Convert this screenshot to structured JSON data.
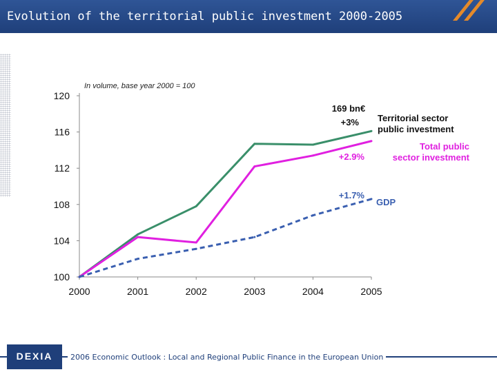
{
  "slide": {
    "title": "Evolution of the territorial public investment 2000-2005",
    "footer_text": "2006 Economic Outlook : Local and Regional Public Finance in the European Union",
    "logo_text": "DEXIA"
  },
  "chart_data": {
    "type": "line",
    "subtitle": "In volume, base year 2000 = 100",
    "categories": [
      "2000",
      "2001",
      "2002",
      "2003",
      "2004",
      "2005"
    ],
    "ylim": [
      100,
      120
    ],
    "yticks": [
      100,
      104,
      108,
      112,
      116,
      120
    ],
    "grid": false,
    "series": [
      {
        "name": "Territorial sector public investment",
        "label_lines": [
          "Territorial sector",
          "public investment"
        ],
        "values": [
          100,
          104.7,
          107.8,
          114.7,
          114.6,
          116.1
        ],
        "color": "#3a8f6a",
        "style": "solid",
        "rate": "+3%"
      },
      {
        "name": "Total public sector investment",
        "label_lines": [
          "Total public",
          "sector investment"
        ],
        "values": [
          100,
          104.4,
          103.8,
          112.2,
          113.4,
          115.0
        ],
        "color": "#e020e0",
        "style": "solid",
        "rate": "+2.9%"
      },
      {
        "name": "GDP",
        "label_lines": [
          "GDP"
        ],
        "values": [
          100,
          102.0,
          103.1,
          104.4,
          106.8,
          108.6
        ],
        "color": "#3a5fb0",
        "style": "dashed",
        "rate": "+1.7%"
      }
    ],
    "annotations": {
      "amount": "169 bn€"
    }
  }
}
